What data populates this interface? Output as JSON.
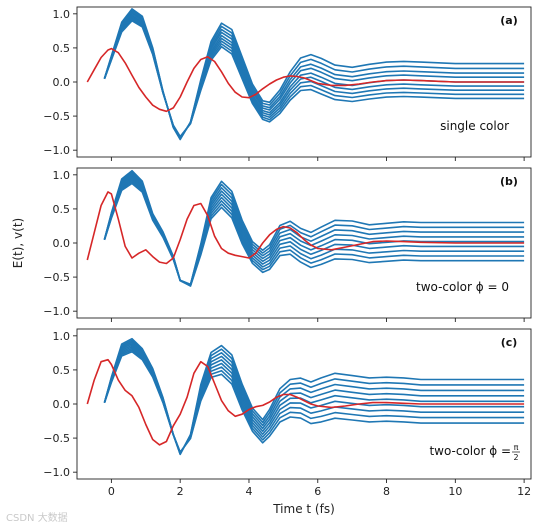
{
  "chart_data": [
    {
      "type": "line",
      "panel_label": "(a)",
      "annotation": "single color",
      "ylim": [
        -1.1,
        1.1
      ],
      "xlim": [
        -1,
        12.2
      ],
      "yticks": [
        "1.0",
        "0.5",
        "0.0",
        "−0.5",
        "−1.0"
      ],
      "xticks": [],
      "field_color": "#d62728",
      "trajectory_color": "#1f77b4",
      "field": {
        "x": [
          -0.7,
          -0.5,
          -0.3,
          -0.1,
          0.0,
          0.2,
          0.4,
          0.6,
          0.8,
          1.0,
          1.2,
          1.4,
          1.6,
          1.8,
          2.0,
          2.2,
          2.4,
          2.6,
          2.8,
          3.0,
          3.2,
          3.4,
          3.6,
          3.8,
          4.0,
          4.2,
          4.4,
          4.6,
          4.8,
          5.0,
          5.2,
          5.4,
          5.6,
          5.8,
          6.0,
          6.4,
          6.8,
          7.2,
          7.6,
          8.0,
          8.5,
          9.0,
          9.5,
          10.0,
          11.0,
          12.0
        ],
        "y": [
          0.0,
          0.18,
          0.36,
          0.47,
          0.49,
          0.43,
          0.28,
          0.1,
          -0.08,
          -0.22,
          -0.34,
          -0.4,
          -0.43,
          -0.38,
          -0.22,
          0.0,
          0.2,
          0.33,
          0.37,
          0.3,
          0.15,
          -0.02,
          -0.15,
          -0.22,
          -0.23,
          -0.18,
          -0.1,
          -0.03,
          0.03,
          0.07,
          0.09,
          0.08,
          0.06,
          0.02,
          -0.02,
          -0.05,
          -0.05,
          -0.03,
          0.0,
          0.02,
          0.03,
          0.02,
          0.01,
          0.0,
          0.0,
          0.0
        ]
      },
      "trajectories": {
        "x": [
          -0.2,
          0.0,
          0.3,
          0.6,
          0.9,
          1.2,
          1.5,
          1.8,
          2.0,
          2.3,
          2.6,
          2.9,
          3.2,
          3.5,
          3.8,
          4.1,
          4.4,
          4.6,
          4.9,
          5.2,
          5.5,
          5.8,
          6.1,
          6.5,
          7.0,
          7.5,
          8.0,
          8.5,
          9.0,
          10.0,
          11.0,
          12.0
        ],
        "mean": [
          0.05,
          0.35,
          0.8,
          0.98,
          0.88,
          0.45,
          -0.15,
          -0.65,
          -0.82,
          -0.6,
          -0.05,
          0.45,
          0.68,
          0.58,
          0.2,
          -0.18,
          -0.42,
          -0.45,
          -0.3,
          -0.07,
          0.1,
          0.13,
          0.07,
          -0.02,
          -0.05,
          -0.01,
          0.02,
          0.03,
          0.02,
          0.0,
          0.0,
          0.0
        ],
        "offsets": [
          0.27,
          0.2,
          0.13,
          0.07,
          0.0,
          -0.06,
          -0.12,
          -0.18,
          -0.24
        ]
      }
    },
    {
      "type": "line",
      "panel_label": "(b)",
      "annotation": "two-color ϕ = 0",
      "ylabel": "E(t), v(t)",
      "ylim": [
        -1.1,
        1.1
      ],
      "xlim": [
        -1,
        12.2
      ],
      "yticks": [
        "1.0",
        "0.5",
        "0.0",
        "−0.5",
        "−1.0"
      ],
      "xticks": [],
      "field_color": "#d62728",
      "trajectory_color": "#1f77b4",
      "field": {
        "x": [
          -0.7,
          -0.5,
          -0.3,
          -0.1,
          0.0,
          0.2,
          0.4,
          0.6,
          0.8,
          1.0,
          1.2,
          1.4,
          1.6,
          1.8,
          2.0,
          2.2,
          2.4,
          2.6,
          2.8,
          3.0,
          3.2,
          3.4,
          3.6,
          3.8,
          4.0,
          4.2,
          4.4,
          4.6,
          4.8,
          5.0,
          5.2,
          5.4,
          5.6,
          5.8,
          6.0,
          6.4,
          6.8,
          7.2,
          7.6,
          8.0,
          8.5,
          9.0,
          10.0,
          11.0,
          12.0
        ],
        "y": [
          -0.25,
          0.15,
          0.55,
          0.75,
          0.72,
          0.35,
          -0.05,
          -0.22,
          -0.15,
          -0.1,
          -0.2,
          -0.28,
          -0.3,
          -0.22,
          0.05,
          0.35,
          0.55,
          0.58,
          0.4,
          0.1,
          -0.08,
          -0.15,
          -0.18,
          -0.2,
          -0.22,
          -0.15,
          0.0,
          0.12,
          0.2,
          0.24,
          0.22,
          0.15,
          0.05,
          -0.03,
          -0.08,
          -0.1,
          -0.06,
          -0.02,
          0.02,
          0.03,
          0.02,
          0.01,
          0.0,
          0.0,
          0.0
        ]
      },
      "trajectories": {
        "x": [
          -0.2,
          0.0,
          0.3,
          0.6,
          0.9,
          1.2,
          1.5,
          1.8,
          2.0,
          2.3,
          2.6,
          2.9,
          3.2,
          3.5,
          3.8,
          4.1,
          4.4,
          4.6,
          4.9,
          5.2,
          5.5,
          5.8,
          6.1,
          6.5,
          7.0,
          7.5,
          8.0,
          8.5,
          9.0,
          10.0,
          11.0,
          12.0
        ],
        "mean": [
          0.05,
          0.4,
          0.85,
          0.96,
          0.82,
          0.38,
          0.12,
          -0.22,
          -0.55,
          -0.62,
          -0.1,
          0.5,
          0.7,
          0.55,
          0.15,
          -0.15,
          -0.28,
          -0.22,
          0.02,
          0.06,
          -0.05,
          -0.12,
          -0.06,
          0.03,
          0.02,
          -0.03,
          -0.01,
          0.01,
          0.0,
          0.0,
          0.0,
          0.0
        ],
        "offsets": [
          0.3,
          0.23,
          0.16,
          0.09,
          0.02,
          -0.05,
          -0.12,
          -0.19,
          -0.26
        ]
      }
    },
    {
      "type": "line",
      "panel_label": "(c)",
      "annotation": "two-color ϕ = π/2",
      "annotation_main": "two-color ϕ = ",
      "annotation_num": "π",
      "annotation_den": "2",
      "xlabel": "Time t (fs)",
      "ylim": [
        -1.1,
        1.1
      ],
      "xlim": [
        -1,
        12.2
      ],
      "yticks": [
        "1.0",
        "0.5",
        "0.0",
        "−0.5",
        "−1.0"
      ],
      "xticks": [
        "0",
        "2",
        "4",
        "6",
        "8",
        "10",
        "12"
      ],
      "field_color": "#d62728",
      "trajectory_color": "#1f77b4",
      "field": {
        "x": [
          -0.7,
          -0.5,
          -0.3,
          -0.1,
          0.0,
          0.2,
          0.4,
          0.6,
          0.8,
          1.0,
          1.2,
          1.4,
          1.6,
          1.8,
          2.0,
          2.2,
          2.4,
          2.6,
          2.8,
          3.0,
          3.2,
          3.4,
          3.6,
          3.8,
          4.0,
          4.2,
          4.4,
          4.6,
          4.8,
          5.0,
          5.2,
          5.4,
          5.6,
          5.8,
          6.0,
          6.4,
          6.8,
          7.2,
          7.6,
          8.0,
          8.5,
          9.0,
          10.0,
          11.0,
          12.0
        ],
        "y": [
          0.0,
          0.35,
          0.62,
          0.65,
          0.58,
          0.35,
          0.2,
          0.12,
          -0.05,
          -0.3,
          -0.52,
          -0.6,
          -0.55,
          -0.32,
          -0.15,
          0.1,
          0.45,
          0.62,
          0.55,
          0.3,
          0.05,
          -0.1,
          -0.18,
          -0.15,
          -0.08,
          -0.04,
          -0.02,
          0.03,
          0.1,
          0.14,
          0.14,
          0.1,
          0.05,
          0.0,
          -0.03,
          -0.05,
          -0.03,
          0.0,
          0.02,
          0.02,
          0.01,
          0.0,
          0.0,
          0.0,
          0.0
        ]
      },
      "trajectories": {
        "x": [
          -0.2,
          0.0,
          0.3,
          0.6,
          0.9,
          1.2,
          1.5,
          1.8,
          2.0,
          2.3,
          2.6,
          2.9,
          3.2,
          3.5,
          3.8,
          4.1,
          4.4,
          4.6,
          4.9,
          5.2,
          5.5,
          5.8,
          6.1,
          6.5,
          7.0,
          7.5,
          8.0,
          8.5,
          9.0,
          10.0,
          11.0,
          12.0
        ],
        "mean": [
          0.02,
          0.35,
          0.78,
          0.85,
          0.72,
          0.45,
          0.05,
          -0.45,
          -0.72,
          -0.48,
          0.15,
          0.55,
          0.62,
          0.48,
          0.08,
          -0.25,
          -0.42,
          -0.3,
          -0.05,
          0.05,
          0.05,
          -0.02,
          0.02,
          0.08,
          0.05,
          0.02,
          0.03,
          0.02,
          0.0,
          0.0,
          0.0,
          0.0
        ],
        "offsets": [
          0.36,
          0.28,
          0.2,
          0.12,
          0.04,
          -0.04,
          -0.12,
          -0.2,
          -0.28
        ]
      }
    }
  ],
  "watermark": "CSDN 大数据"
}
